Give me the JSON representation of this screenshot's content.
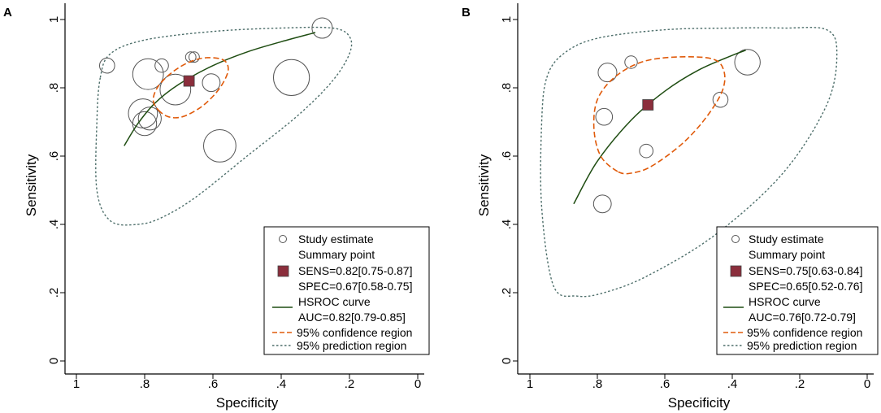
{
  "chart_data": [
    {
      "type": "scatter",
      "panel_label": "A",
      "xlabel": "Specificity",
      "ylabel": "Sensitivity",
      "xlim": [
        1,
        0
      ],
      "ylim": [
        0,
        1
      ],
      "x_ticks": [
        1,
        0.8,
        0.6,
        0.4,
        0.2,
        0
      ],
      "x_tick_labels": [
        "1",
        ".8",
        ".6",
        ".4",
        ".2",
        "0"
      ],
      "y_ticks": [
        0,
        0.2,
        0.4,
        0.6,
        0.8,
        1
      ],
      "y_tick_labels": [
        "0",
        ".2",
        ".4",
        ".6",
        ".8",
        "1"
      ],
      "studies": [
        {
          "spec": 0.28,
          "sens": 0.975,
          "size": 0.25
        },
        {
          "spec": 0.91,
          "sens": 0.865,
          "size": 0.15
        },
        {
          "spec": 0.75,
          "sens": 0.865,
          "size": 0.12
        },
        {
          "spec": 0.665,
          "sens": 0.89,
          "size": 0.06
        },
        {
          "spec": 0.655,
          "sens": 0.89,
          "size": 0.06
        },
        {
          "spec": 0.79,
          "sens": 0.84,
          "size": 0.45
        },
        {
          "spec": 0.71,
          "sens": 0.795,
          "size": 0.45
        },
        {
          "spec": 0.605,
          "sens": 0.815,
          "size": 0.2
        },
        {
          "spec": 0.37,
          "sens": 0.83,
          "size": 0.55
        },
        {
          "spec": 0.805,
          "sens": 0.725,
          "size": 0.42
        },
        {
          "spec": 0.785,
          "sens": 0.71,
          "size": 0.3
        },
        {
          "spec": 0.8,
          "sens": 0.695,
          "size": 0.32
        },
        {
          "spec": 0.58,
          "sens": 0.63,
          "size": 0.48
        }
      ],
      "summary_point": {
        "spec": 0.67,
        "sens": 0.82
      },
      "hsroc_curve": [
        {
          "spec": 0.86,
          "sens": 0.63
        },
        {
          "spec": 0.82,
          "sens": 0.695
        },
        {
          "spec": 0.77,
          "sens": 0.755
        },
        {
          "spec": 0.7,
          "sens": 0.81
        },
        {
          "spec": 0.6,
          "sens": 0.865
        },
        {
          "spec": 0.5,
          "sens": 0.905
        },
        {
          "spec": 0.4,
          "sens": 0.935
        },
        {
          "spec": 0.3,
          "sens": 0.962
        }
      ],
      "confidence_region": [
        {
          "spec": 0.76,
          "sens": 0.735
        },
        {
          "spec": 0.73,
          "sens": 0.715
        },
        {
          "spec": 0.69,
          "sens": 0.715
        },
        {
          "spec": 0.64,
          "sens": 0.74
        },
        {
          "spec": 0.6,
          "sens": 0.775
        },
        {
          "spec": 0.57,
          "sens": 0.815
        },
        {
          "spec": 0.555,
          "sens": 0.855
        },
        {
          "spec": 0.57,
          "sens": 0.882
        },
        {
          "spec": 0.62,
          "sens": 0.888
        },
        {
          "spec": 0.67,
          "sens": 0.875
        },
        {
          "spec": 0.72,
          "sens": 0.845
        },
        {
          "spec": 0.76,
          "sens": 0.805
        },
        {
          "spec": 0.775,
          "sens": 0.765
        },
        {
          "spec": 0.76,
          "sens": 0.735
        }
      ],
      "prediction_region": [
        {
          "spec": 0.93,
          "sens": 0.83
        },
        {
          "spec": 0.9,
          "sens": 0.9
        },
        {
          "spec": 0.8,
          "sens": 0.94
        },
        {
          "spec": 0.6,
          "sens": 0.965
        },
        {
          "spec": 0.4,
          "sens": 0.975
        },
        {
          "spec": 0.25,
          "sens": 0.975
        },
        {
          "spec": 0.2,
          "sens": 0.95
        },
        {
          "spec": 0.2,
          "sens": 0.9
        },
        {
          "spec": 0.25,
          "sens": 0.82
        },
        {
          "spec": 0.35,
          "sens": 0.72
        },
        {
          "spec": 0.5,
          "sens": 0.6
        },
        {
          "spec": 0.65,
          "sens": 0.48
        },
        {
          "spec": 0.75,
          "sens": 0.42
        },
        {
          "spec": 0.82,
          "sens": 0.4
        },
        {
          "spec": 0.9,
          "sens": 0.41
        },
        {
          "spec": 0.94,
          "sens": 0.5
        },
        {
          "spec": 0.94,
          "sens": 0.7
        },
        {
          "spec": 0.93,
          "sens": 0.83
        }
      ],
      "legend": {
        "position": "bottom-right",
        "study_label": "Study estimate",
        "summary_title": "Summary point",
        "sens_text": "SENS=0.82[0.75-0.87]",
        "spec_text": "SPEC=0.67[0.58-0.75]",
        "hsroc_title": "HSROC curve",
        "auc_text": "AUC=0.82[0.79-0.85]",
        "confidence_label": "95% confidence region",
        "prediction_label": "95% prediction region"
      }
    },
    {
      "type": "scatter",
      "panel_label": "B",
      "xlabel": "Specificity",
      "ylabel": "Sensitivity",
      "xlim": [
        1,
        0
      ],
      "ylim": [
        0,
        1
      ],
      "x_ticks": [
        1,
        0.8,
        0.6,
        0.4,
        0.2,
        0
      ],
      "x_tick_labels": [
        "1",
        ".8",
        ".6",
        ".4",
        ".2",
        "0"
      ],
      "y_ticks": [
        0,
        0.2,
        0.4,
        0.6,
        0.8,
        1
      ],
      "y_tick_labels": [
        "0",
        ".2",
        ".4",
        ".6",
        ".8",
        "1"
      ],
      "studies": [
        {
          "spec": 0.77,
          "sens": 0.845,
          "size": 0.22
        },
        {
          "spec": 0.7,
          "sens": 0.875,
          "size": 0.1
        },
        {
          "spec": 0.355,
          "sens": 0.875,
          "size": 0.35
        },
        {
          "spec": 0.78,
          "sens": 0.715,
          "size": 0.18
        },
        {
          "spec": 0.435,
          "sens": 0.765,
          "size": 0.15
        },
        {
          "spec": 0.655,
          "sens": 0.615,
          "size": 0.12
        },
        {
          "spec": 0.785,
          "sens": 0.46,
          "size": 0.2
        }
      ],
      "summary_point": {
        "spec": 0.65,
        "sens": 0.75
      },
      "hsroc_curve": [
        {
          "spec": 0.87,
          "sens": 0.46
        },
        {
          "spec": 0.8,
          "sens": 0.585
        },
        {
          "spec": 0.7,
          "sens": 0.705
        },
        {
          "spec": 0.6,
          "sens": 0.79
        },
        {
          "spec": 0.5,
          "sens": 0.852
        },
        {
          "spec": 0.4,
          "sens": 0.895
        },
        {
          "spec": 0.36,
          "sens": 0.91
        }
      ],
      "confidence_region": [
        {
          "spec": 0.74,
          "sens": 0.555
        },
        {
          "spec": 0.79,
          "sens": 0.6
        },
        {
          "spec": 0.81,
          "sens": 0.68
        },
        {
          "spec": 0.8,
          "sens": 0.765
        },
        {
          "spec": 0.75,
          "sens": 0.83
        },
        {
          "spec": 0.67,
          "sens": 0.875
        },
        {
          "spec": 0.57,
          "sens": 0.89
        },
        {
          "spec": 0.46,
          "sens": 0.885
        },
        {
          "spec": 0.425,
          "sens": 0.85
        },
        {
          "spec": 0.43,
          "sens": 0.79
        },
        {
          "spec": 0.48,
          "sens": 0.71
        },
        {
          "spec": 0.55,
          "sens": 0.635
        },
        {
          "spec": 0.64,
          "sens": 0.57
        },
        {
          "spec": 0.7,
          "sens": 0.55
        },
        {
          "spec": 0.74,
          "sens": 0.555
        }
      ],
      "prediction_region": [
        {
          "spec": 0.95,
          "sens": 0.83
        },
        {
          "spec": 0.9,
          "sens": 0.9
        },
        {
          "spec": 0.8,
          "sens": 0.945
        },
        {
          "spec": 0.6,
          "sens": 0.97
        },
        {
          "spec": 0.4,
          "sens": 0.975
        },
        {
          "spec": 0.25,
          "sens": 0.975
        },
        {
          "spec": 0.12,
          "sens": 0.97
        },
        {
          "spec": 0.09,
          "sens": 0.9
        },
        {
          "spec": 0.12,
          "sens": 0.75
        },
        {
          "spec": 0.25,
          "sens": 0.55
        },
        {
          "spec": 0.45,
          "sens": 0.37
        },
        {
          "spec": 0.65,
          "sens": 0.25
        },
        {
          "spec": 0.78,
          "sens": 0.2
        },
        {
          "spec": 0.86,
          "sens": 0.19
        },
        {
          "spec": 0.93,
          "sens": 0.22
        },
        {
          "spec": 0.965,
          "sens": 0.45
        },
        {
          "spec": 0.965,
          "sens": 0.7
        },
        {
          "spec": 0.95,
          "sens": 0.83
        }
      ],
      "legend": {
        "position": "bottom-right",
        "study_label": "Study estimate",
        "summary_title": "Summary point",
        "sens_text": "SENS=0.75[0.63-0.84]",
        "spec_text": "SPEC=0.65[0.52-0.76]",
        "hsroc_title": "HSROC curve",
        "auc_text": "AUC=0.76[0.72-0.79]",
        "confidence_label": "95% confidence region",
        "prediction_label": "95% prediction region"
      }
    }
  ],
  "colors": {
    "axis": "#000000",
    "study_marker": "#555555",
    "summary_fill": "#8b2e3c",
    "hsroc": "#1f4d12",
    "confidence": "#e05a0a",
    "prediction": "#4d6e6a"
  }
}
